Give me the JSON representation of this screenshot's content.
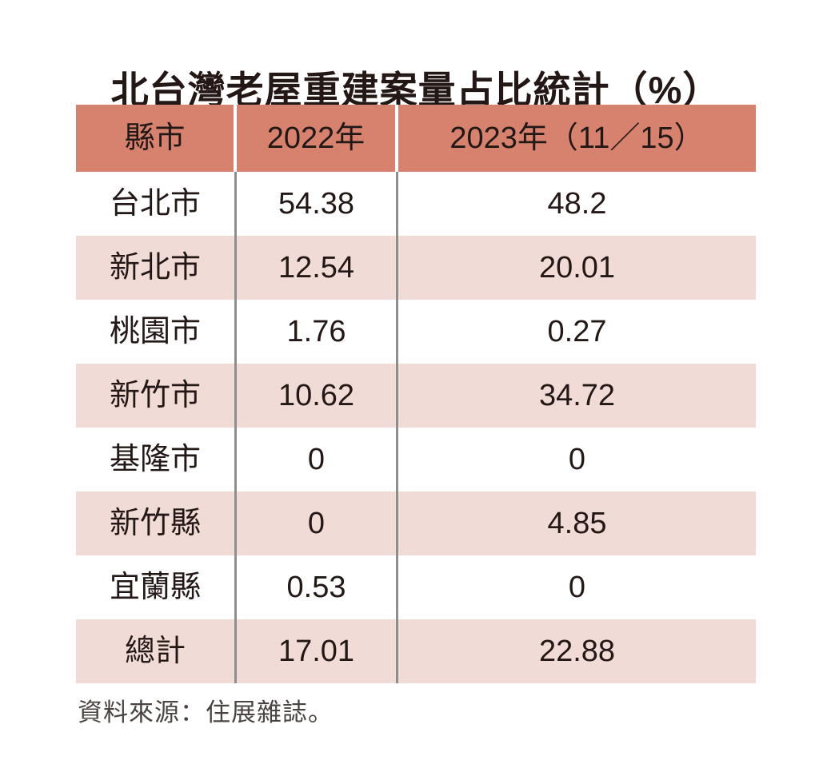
{
  "title": "北台灣老屋重建案量占比統計（%）",
  "table": {
    "columns": [
      "縣市",
      "2022年",
      "2023年（11／15）"
    ],
    "rows": [
      {
        "city": "台北市",
        "y2022": "54.38",
        "y2023": "48.2"
      },
      {
        "city": "新北市",
        "y2022": "12.54",
        "y2023": "20.01"
      },
      {
        "city": "桃園市",
        "y2022": "1.76",
        "y2023": "0.27"
      },
      {
        "city": "新竹市",
        "y2022": "10.62",
        "y2023": "34.72"
      },
      {
        "city": "基隆市",
        "y2022": "0",
        "y2023": "0"
      },
      {
        "city": "新竹縣",
        "y2022": "0",
        "y2023": "4.85"
      },
      {
        "city": "宜蘭縣",
        "y2022": "0.53",
        "y2023": "0"
      },
      {
        "city": "總計",
        "y2022": "17.01",
        "y2023": "22.88"
      }
    ]
  },
  "footer": {
    "source": "資料來源：住展雜誌。"
  },
  "colors": {
    "header_bg": "#D6826F",
    "row_alt_bg": "#F1DBD7",
    "row_bg": "#FFFFFF",
    "text": "#231815",
    "column_rule": "#8E8E8E",
    "footer_text": "#4A4340",
    "page_bg": "#FFFFFF"
  },
  "chart_data": {
    "type": "table",
    "title": "北台灣老屋重建案量占比統計（%）",
    "categories": [
      "台北市",
      "新北市",
      "桃園市",
      "新竹市",
      "基隆市",
      "新竹縣",
      "宜蘭縣",
      "總計"
    ],
    "series": [
      {
        "name": "2022年",
        "values": [
          54.38,
          12.54,
          1.76,
          10.62,
          0,
          0,
          0.53,
          17.01
        ]
      },
      {
        "name": "2023年（11／15）",
        "values": [
          48.2,
          20.01,
          0.27,
          34.72,
          0,
          4.85,
          0,
          22.88
        ]
      }
    ],
    "unit": "%",
    "source": "資料來源：住展雜誌。"
  }
}
